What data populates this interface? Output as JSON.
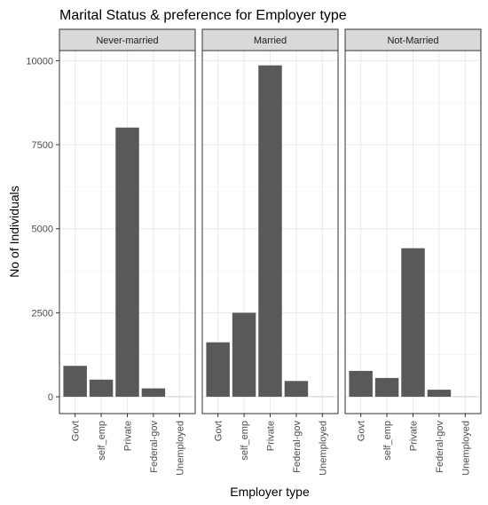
{
  "chart_data": {
    "type": "bar",
    "title": "Marital Status & preference for Employer type",
    "xlabel": "Employer type",
    "ylabel": "No of Individuals",
    "categories": [
      "Govt",
      "self_emp",
      "Private",
      "Federal-gov",
      "Unemployed"
    ],
    "ylim": [
      -500,
      10300
    ],
    "yticks": [
      0,
      2500,
      5000,
      7500,
      10000
    ],
    "yticklabels": [
      "0",
      "2500",
      "5000",
      "7500",
      "10000"
    ],
    "grid": true,
    "bar_color": "#595959",
    "strip_color": "#d9d9d9",
    "panels": [
      {
        "name": "Never-married",
        "values": [
          920,
          510,
          8010,
          250,
          5
        ]
      },
      {
        "name": "Married",
        "values": [
          1620,
          2500,
          9860,
          470,
          5
        ]
      },
      {
        "name": "Not-Married",
        "values": [
          770,
          560,
          4420,
          210,
          5
        ]
      }
    ]
  }
}
